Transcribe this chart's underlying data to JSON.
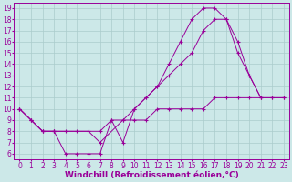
{
  "xlabel": "Windchill (Refroidissement éolien,°C)",
  "xlim": [
    -0.5,
    23.5
  ],
  "ylim": [
    5.5,
    19.5
  ],
  "xticks": [
    0,
    1,
    2,
    3,
    4,
    5,
    6,
    7,
    8,
    9,
    10,
    11,
    12,
    13,
    14,
    15,
    16,
    17,
    18,
    19,
    20,
    21,
    22,
    23
  ],
  "yticks": [
    6,
    7,
    8,
    9,
    10,
    11,
    12,
    13,
    14,
    15,
    16,
    17,
    18,
    19
  ],
  "bg_color": "#cce8e8",
  "line_color": "#990099",
  "grid_color": "#aacccc",
  "line1_x": [
    0,
    1,
    2,
    3,
    4,
    5,
    6,
    7,
    8,
    9,
    10,
    11,
    12,
    13,
    14,
    15,
    16,
    17,
    18,
    19,
    20,
    21
  ],
  "line1_y": [
    10,
    9,
    8,
    8,
    6,
    6,
    6,
    6,
    9,
    7,
    10,
    11,
    12,
    14,
    16,
    18,
    19,
    19,
    18,
    16,
    13,
    11
  ],
  "line2_x": [
    0,
    1,
    2,
    3,
    4,
    5,
    6,
    7,
    9,
    10,
    11,
    12,
    13,
    14,
    15,
    16,
    17,
    18,
    19,
    20,
    21,
    22,
    23
  ],
  "line2_y": [
    10,
    9,
    8,
    8,
    8,
    8,
    8,
    7,
    9,
    10,
    11,
    12,
    13,
    14,
    15,
    17,
    18,
    18,
    15,
    13,
    11,
    11,
    11
  ],
  "line3_x": [
    0,
    1,
    2,
    3,
    7,
    8,
    9,
    10,
    11,
    12,
    13,
    14,
    15,
    16,
    17,
    18,
    19,
    20,
    21,
    22,
    23
  ],
  "line3_y": [
    10,
    9,
    8,
    8,
    8,
    9,
    9,
    9,
    9,
    10,
    10,
    10,
    10,
    10,
    11,
    11,
    11,
    11,
    11,
    11,
    11
  ],
  "tickfont_size": 5.5,
  "labelfont_size": 6.5
}
